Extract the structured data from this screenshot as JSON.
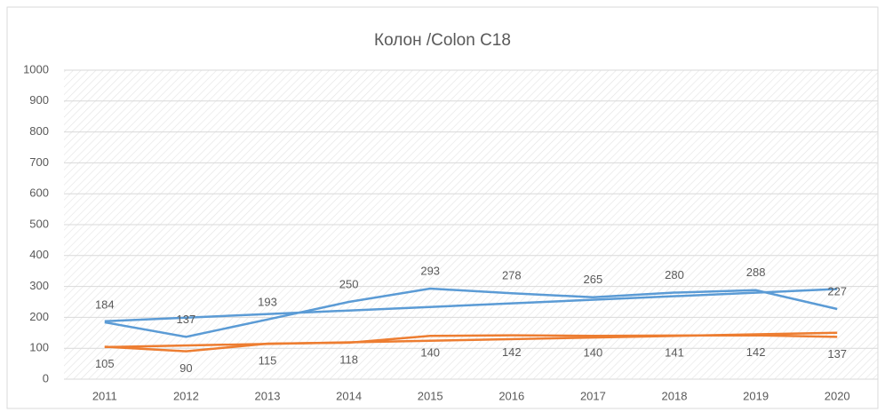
{
  "chart_data": {
    "type": "line",
    "title": "Колон /Colon C18",
    "categories": [
      "2011",
      "2012",
      "2013",
      "2014",
      "2015",
      "2016",
      "2017",
      "2018",
      "2019",
      "2020"
    ],
    "series": [
      {
        "color": "#5b9bd5",
        "values": [
          184,
          137,
          193,
          250,
          293,
          278,
          265,
          280,
          288,
          227
        ]
      },
      {
        "color": "#ed7d31",
        "values": [
          105,
          90,
          115,
          118,
          140,
          142,
          140,
          141,
          142,
          137
        ]
      }
    ],
    "ylim": [
      0,
      1000
    ],
    "yticks": [
      0,
      100,
      200,
      300,
      400,
      500,
      600,
      700,
      800,
      900,
      1000
    ],
    "grid": true,
    "trendline": "linear",
    "data_labels": true
  }
}
